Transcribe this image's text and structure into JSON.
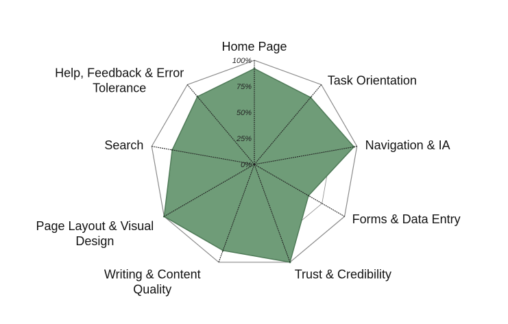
{
  "chart_data": {
    "type": "radar",
    "categories": [
      "Home Page",
      "Task Orientation",
      "Navigation & IA",
      "Forms & Data Entry",
      "Trust & Credibility",
      "Writing & Content Quality",
      "Page Layout & Visual Design",
      "Search",
      "Help, Feedback & Error Tolerance"
    ],
    "label_lines": [
      [
        "Home Page"
      ],
      [
        "Task Orientation"
      ],
      [
        "Navigation & IA"
      ],
      [
        "Forms & Data Entry"
      ],
      [
        "Trust & Credibility"
      ],
      [
        "Writing & Content",
        "Quality"
      ],
      [
        "Page Layout & Visual",
        "Design"
      ],
      [
        "Search"
      ],
      [
        "Help, Feedback & Error",
        "Tolerance"
      ]
    ],
    "series": [
      {
        "values": [
          92,
          84,
          97,
          60,
          100,
          88,
          100,
          80,
          85
        ]
      }
    ],
    "rlim": [
      0,
      100
    ],
    "ticks": [
      "0%",
      "25%",
      "50%",
      "75%",
      "100%"
    ],
    "tick_values": [
      0,
      25,
      50,
      75,
      100
    ],
    "grid": true,
    "colors": {
      "fill": "#6f9c78",
      "stroke": "#4e7a57",
      "grid": "#8a8a8a",
      "spoke": "#222222"
    }
  }
}
